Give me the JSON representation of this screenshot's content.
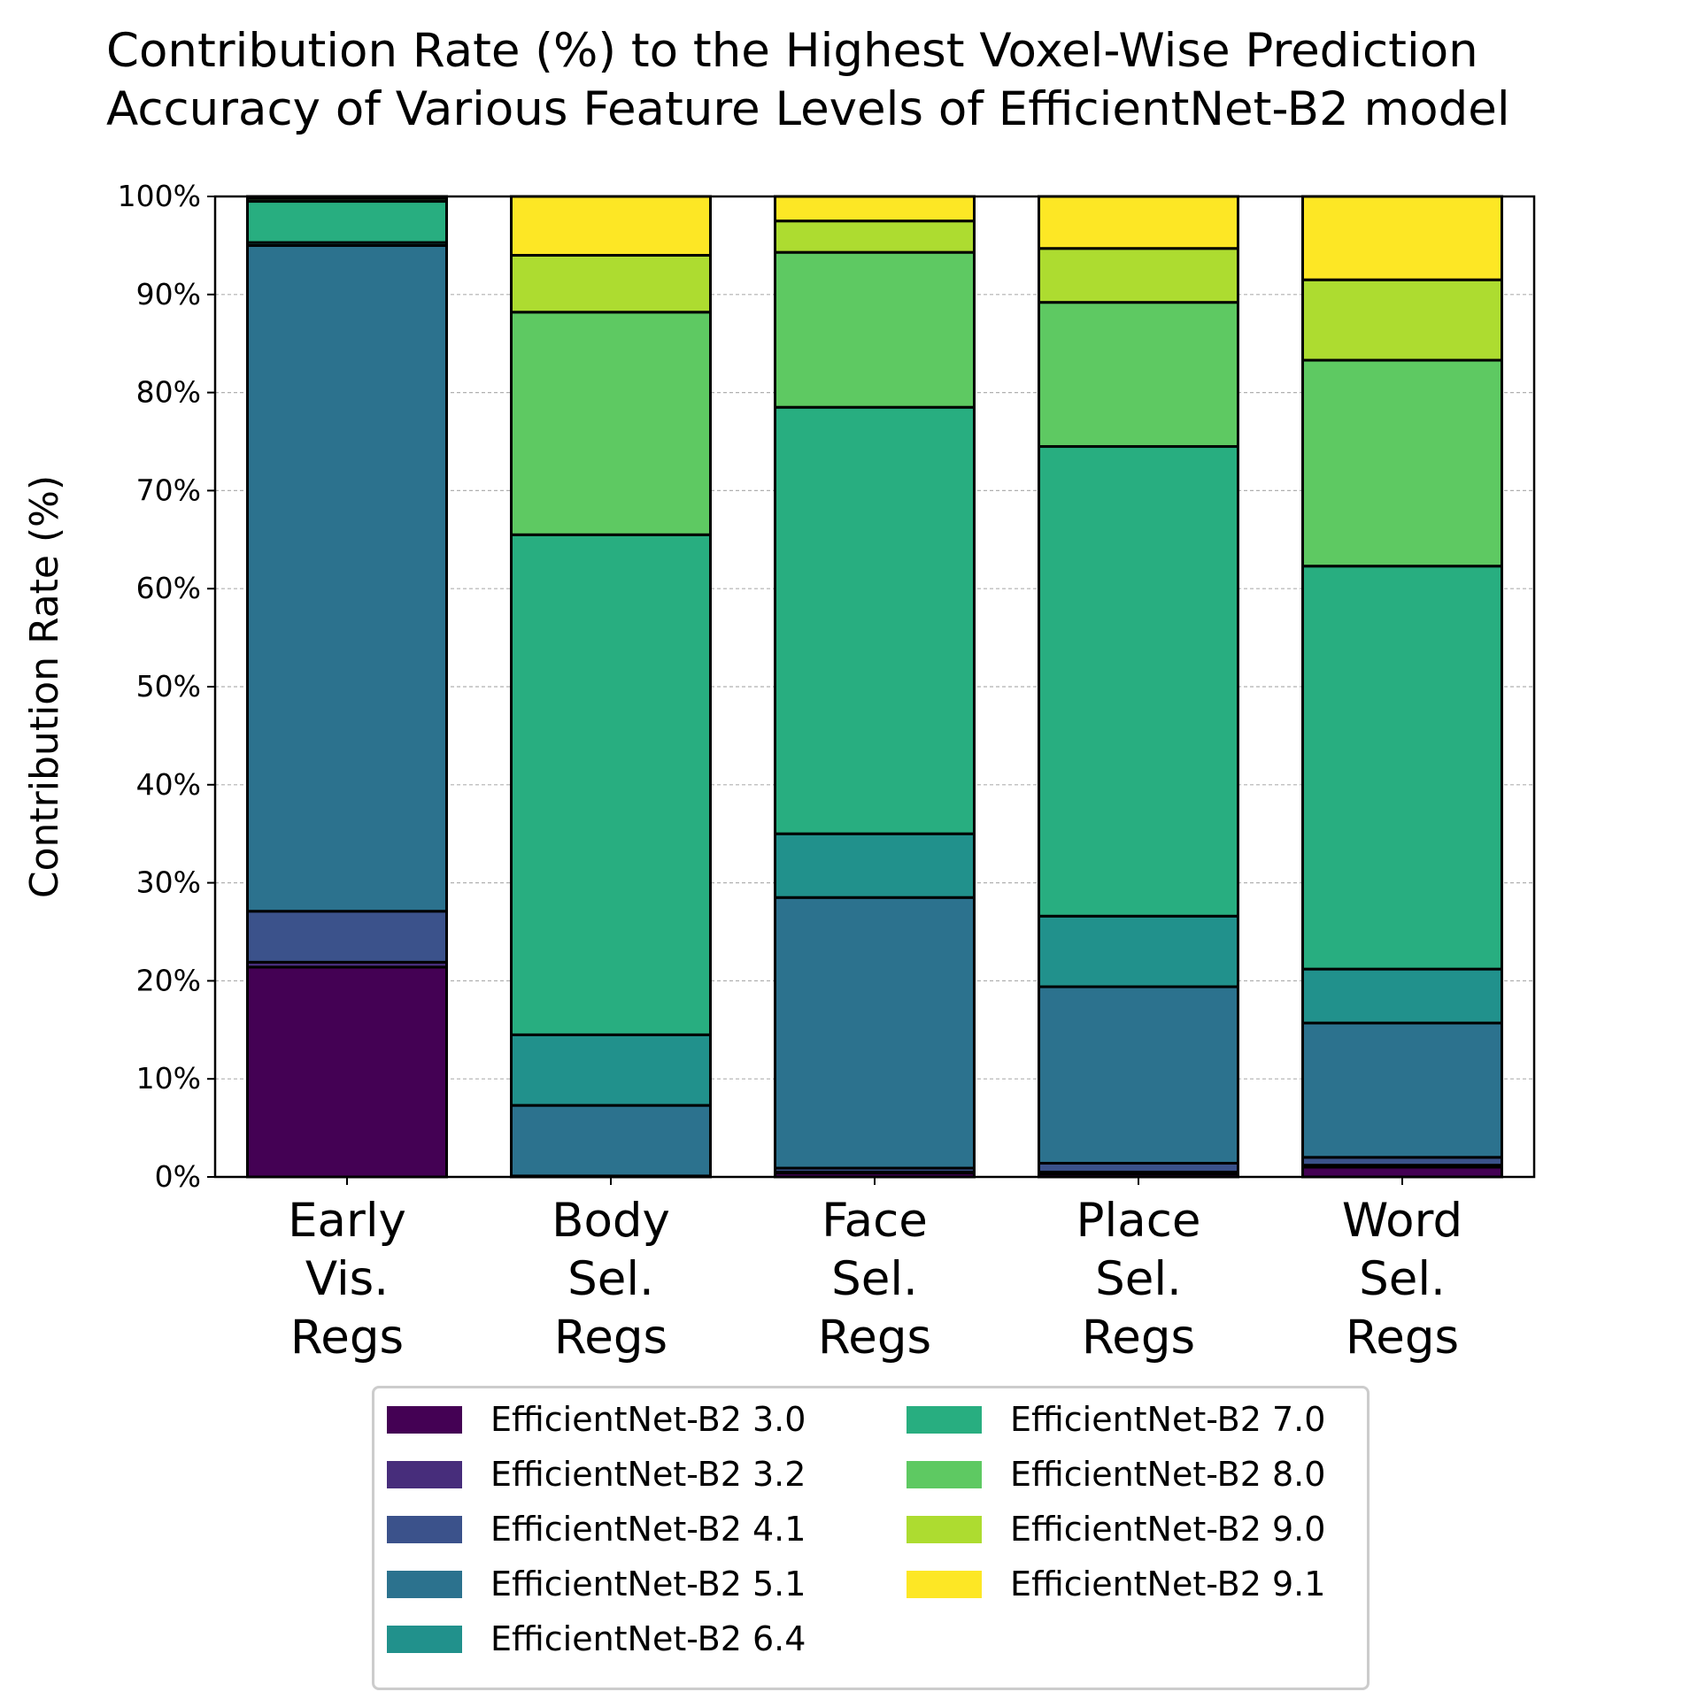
{
  "chart_data": {
    "type": "bar",
    "stacked": true,
    "title": [
      "Contribution Rate (%) to the Highest Voxel-Wise Prediction",
      "Accuracy of Various Feature Levels of EfficientNet-B2 model"
    ],
    "ylabel": "Contribution Rate (%)",
    "xlabel": "",
    "ylim": [
      0,
      100
    ],
    "yticks": [
      "0%",
      "10%",
      "20%",
      "30%",
      "40%",
      "50%",
      "60%",
      "70%",
      "80%",
      "90%",
      "100%"
    ],
    "grid": "horizontal dashed",
    "legend_position": "bottom-center",
    "categories": [
      [
        "Early",
        "Vis.",
        "Regs"
      ],
      [
        "Body",
        "Sel.",
        "Regs"
      ],
      [
        "Face",
        "Sel.",
        "Regs"
      ],
      [
        "Place",
        "Sel.",
        "Regs"
      ],
      [
        "Word",
        "Sel.",
        "Regs"
      ]
    ],
    "series": [
      {
        "name": "EfficientNet-B2 3.0",
        "color": "#440154",
        "values": [
          21.4,
          0.1,
          0.4,
          0.3,
          1.0
        ]
      },
      {
        "name": "EfficientNet-B2 3.2",
        "color": "#472d7b",
        "values": [
          0.5,
          0.0,
          0.1,
          0.2,
          0.2
        ]
      },
      {
        "name": "EfficientNet-B2 4.1",
        "color": "#3b528b",
        "values": [
          5.2,
          0.0,
          0.4,
          0.9,
          0.8
        ]
      },
      {
        "name": "EfficientNet-B2 5.1",
        "color": "#2c728e",
        "values": [
          67.9,
          7.2,
          27.6,
          18.0,
          13.7
        ]
      },
      {
        "name": "EfficientNet-B2 6.4",
        "color": "#21918c",
        "values": [
          0.3,
          7.2,
          6.5,
          7.2,
          5.5
        ]
      },
      {
        "name": "EfficientNet-B2 7.0",
        "color": "#28ae80",
        "values": [
          4.2,
          51.0,
          43.5,
          47.9,
          41.1
        ]
      },
      {
        "name": "EfficientNet-B2 8.0",
        "color": "#5ec962",
        "values": [
          0.3,
          22.7,
          15.8,
          14.7,
          21.0
        ]
      },
      {
        "name": "EfficientNet-B2 9.0",
        "color": "#addc30",
        "values": [
          0.1,
          5.8,
          3.2,
          5.5,
          8.2
        ]
      },
      {
        "name": "EfficientNet-B2 9.1",
        "color": "#fde725",
        "values": [
          0.1,
          6.0,
          2.5,
          5.3,
          8.5
        ]
      }
    ]
  }
}
